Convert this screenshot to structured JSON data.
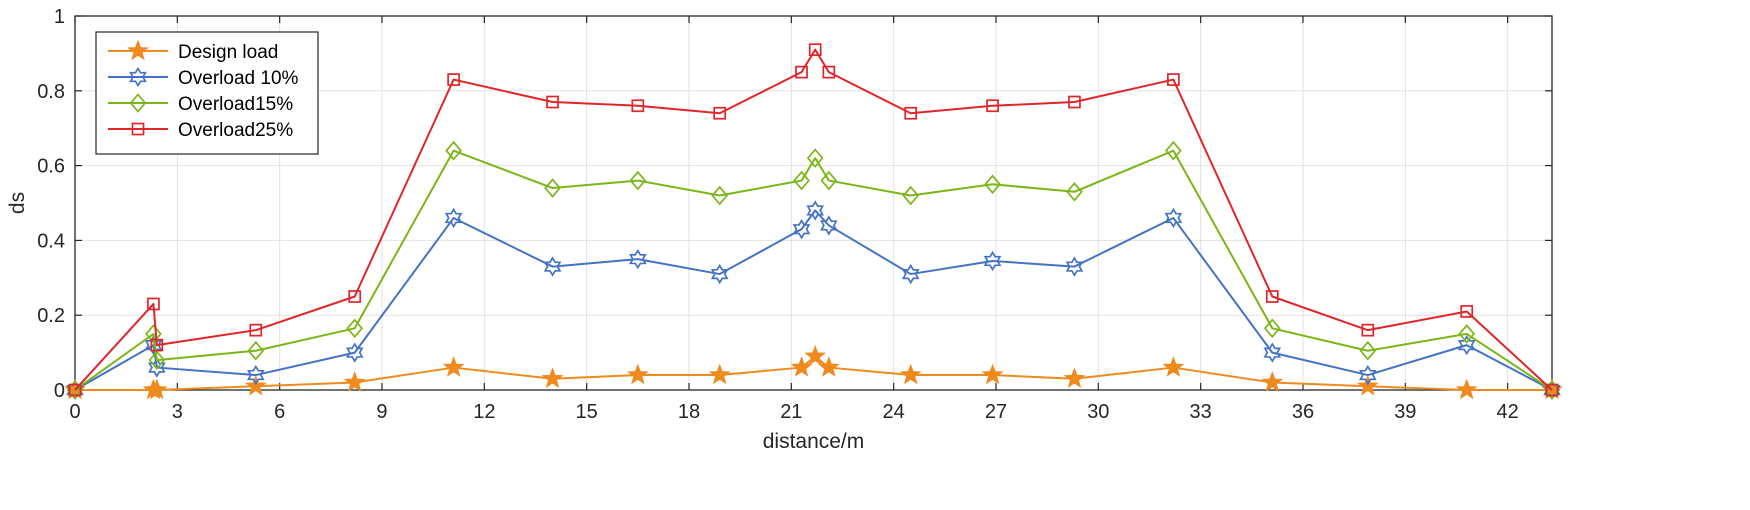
{
  "chart_data": {
    "type": "line",
    "title": "",
    "xlabel": "distance/m",
    "ylabel": "ds",
    "xlim": [
      0,
      43.3
    ],
    "ylim": [
      0,
      1
    ],
    "xticks": [
      0,
      3,
      6,
      9,
      12,
      15,
      18,
      21,
      24,
      27,
      30,
      33,
      36,
      39,
      42
    ],
    "yticks": [
      0,
      0.2,
      0.4,
      0.6,
      0.8,
      1
    ],
    "ytick_labels": [
      "0",
      "0.2",
      "0.4",
      "0.6",
      "0.8",
      "1"
    ],
    "grid": true,
    "legend_position": "top-left",
    "series": [
      {
        "name": "Design load",
        "color": "#EE8A1E",
        "marker": "star",
        "x": [
          0,
          2.3,
          2.4,
          5.3,
          8.2,
          11.1,
          14,
          16.5,
          18.9,
          21.3,
          21.7,
          22.1,
          24.5,
          26.9,
          29.3,
          32.2,
          35.1,
          37.9,
          40.8,
          43.3
        ],
        "y": [
          0,
          0,
          0,
          0.01,
          0.02,
          0.06,
          0.03,
          0.04,
          0.04,
          0.06,
          0.09,
          0.06,
          0.04,
          0.04,
          0.03,
          0.06,
          0.02,
          0.01,
          0,
          0
        ]
      },
      {
        "name": "Overload 10%",
        "color": "#4472C4",
        "marker": "hexagram",
        "x": [
          0,
          2.3,
          2.4,
          5.3,
          8.2,
          11.1,
          14,
          16.5,
          18.9,
          21.3,
          21.7,
          22.1,
          24.5,
          26.9,
          29.3,
          32.2,
          35.1,
          37.9,
          40.8,
          43.3
        ],
        "y": [
          0,
          0.12,
          0.06,
          0.04,
          0.1,
          0.46,
          0.33,
          0.35,
          0.31,
          0.43,
          0.48,
          0.44,
          0.31,
          0.345,
          0.33,
          0.46,
          0.1,
          0.04,
          0.12,
          0
        ]
      },
      {
        "name": "Overload15%",
        "color": "#7CB518",
        "marker": "diamond",
        "x": [
          0,
          2.3,
          2.4,
          5.3,
          8.2,
          11.1,
          14,
          16.5,
          18.9,
          21.3,
          21.7,
          22.1,
          24.5,
          26.9,
          29.3,
          32.2,
          35.1,
          37.9,
          40.8,
          43.3
        ],
        "y": [
          0,
          0.15,
          0.08,
          0.105,
          0.165,
          0.64,
          0.54,
          0.56,
          0.52,
          0.56,
          0.62,
          0.56,
          0.52,
          0.55,
          0.53,
          0.64,
          0.165,
          0.105,
          0.15,
          0
        ]
      },
      {
        "name": "Overload25%",
        "color": "#E0262A",
        "marker": "square",
        "x": [
          0,
          2.3,
          2.4,
          5.3,
          8.2,
          11.1,
          14,
          16.5,
          18.9,
          21.3,
          21.7,
          22.1,
          24.5,
          26.9,
          29.3,
          32.2,
          35.1,
          37.9,
          40.8,
          43.3
        ],
        "y": [
          0,
          0.23,
          0.12,
          0.16,
          0.25,
          0.83,
          0.77,
          0.76,
          0.74,
          0.85,
          0.91,
          0.85,
          0.74,
          0.76,
          0.77,
          0.83,
          0.25,
          0.16,
          0.21,
          0
        ]
      }
    ]
  }
}
